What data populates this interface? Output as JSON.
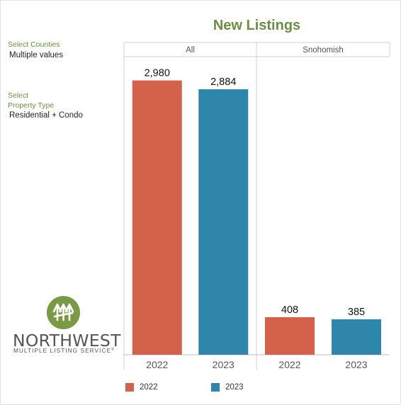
{
  "title": "New Listings",
  "filters": {
    "counties_label": "Select Counties",
    "counties_value": "Multiple values",
    "type_label_line1": "Select",
    "type_label_line2": "Property Type",
    "type_value": "Residential + Condo"
  },
  "logo": {
    "word": "NORTHWEST",
    "sub": "MULTIPLE LISTING SERVICE",
    "mark": "®"
  },
  "colors": {
    "y2022": "#d4614a",
    "y2023": "#2e86ab",
    "title": "#6a8f3f"
  },
  "chart_data": {
    "type": "bar",
    "panels": [
      "All",
      "Snohomish"
    ],
    "categories": [
      "2022",
      "2023"
    ],
    "values": [
      [
        2980,
        2884
      ],
      [
        408,
        385
      ]
    ],
    "value_labels": [
      [
        "2,980",
        "2,884"
      ],
      [
        "408",
        "385"
      ]
    ],
    "ylim": [
      0,
      3200
    ],
    "grid": false,
    "legend": {
      "position": "bottom",
      "entries": [
        "2022",
        "2023"
      ]
    }
  }
}
